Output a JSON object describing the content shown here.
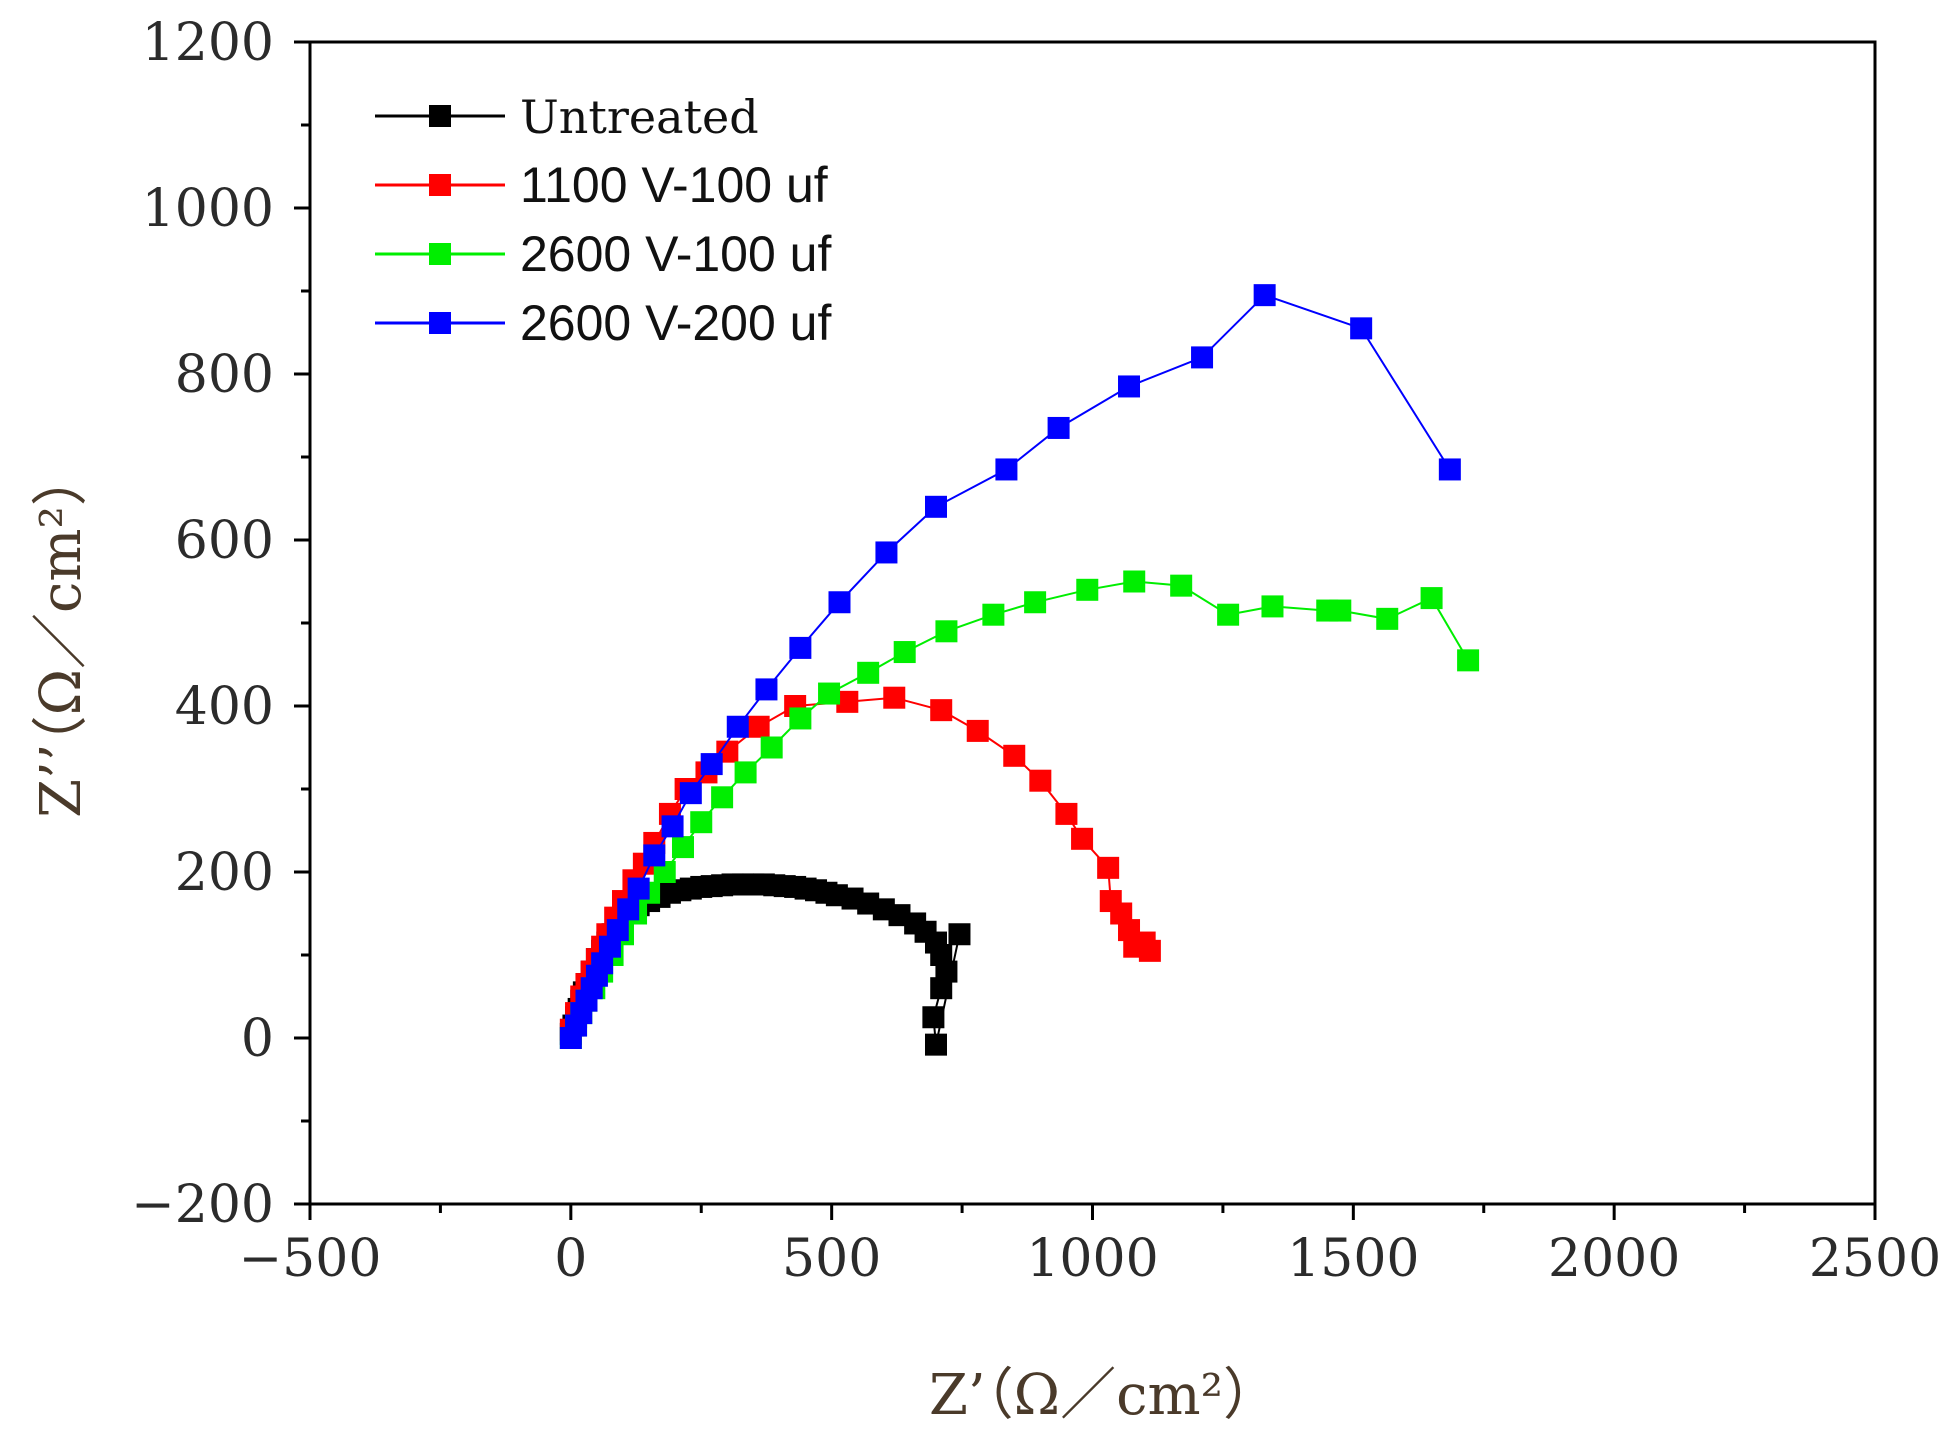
{
  "chart_data": {
    "type": "scatter",
    "title": "",
    "xlabel": "Z’（Ω／cm²）",
    "ylabel": "Z’’（Ω／cm²）",
    "xlim": [
      -500,
      2500
    ],
    "ylim": [
      -200,
      1200
    ],
    "x_ticks": [
      -500,
      0,
      500,
      1000,
      1500,
      2000,
      2500
    ],
    "y_ticks": [
      -200,
      0,
      200,
      400,
      600,
      800,
      1000,
      1200
    ],
    "x_tick_labels": [
      "−500",
      "0",
      "500",
      "1000",
      "1500",
      "2000",
      "2500"
    ],
    "y_tick_labels": [
      "−200",
      "0",
      "200",
      "400",
      "600",
      "800",
      "1000",
      "1200"
    ],
    "legend_position": "top-left",
    "series": [
      {
        "name": "Untreated",
        "color": "#000000",
        "x": [
          0,
          5,
          10,
          15,
          20,
          25,
          30,
          40,
          50,
          60,
          70,
          80,
          90,
          100,
          115,
          130,
          150,
          170,
          190,
          210,
          230,
          250,
          270,
          290,
          310,
          330,
          350,
          370,
          390,
          410,
          430,
          450,
          470,
          490,
          510,
          540,
          570,
          600,
          630,
          660,
          680,
          700,
          710,
          720,
          710,
          695,
          700,
          745
        ],
        "y": [
          5,
          15,
          25,
          35,
          45,
          55,
          65,
          80,
          95,
          105,
          115,
          125,
          135,
          142,
          152,
          160,
          165,
          170,
          175,
          178,
          180,
          182,
          183,
          184,
          185,
          185,
          185,
          185,
          184,
          183,
          182,
          180,
          178,
          175,
          172,
          168,
          162,
          155,
          148,
          138,
          128,
          115,
          100,
          80,
          60,
          25,
          -8,
          125
        ]
      },
      {
        "name": "1100 V-100 uf",
        "color": "#ff0000",
        "x": [
          0,
          10,
          20,
          30,
          40,
          50,
          60,
          70,
          85,
          100,
          120,
          140,
          160,
          190,
          220,
          260,
          300,
          360,
          430,
          530,
          620,
          710,
          780,
          850,
          900,
          950,
          980,
          1030,
          1035,
          1055,
          1070,
          1080,
          1100,
          1110
        ],
        "y": [
          10,
          30,
          50,
          65,
          80,
          95,
          110,
          125,
          145,
          165,
          190,
          210,
          235,
          270,
          300,
          320,
          345,
          375,
          400,
          405,
          410,
          395,
          370,
          340,
          310,
          270,
          240,
          205,
          165,
          150,
          130,
          110,
          115,
          105
        ]
      },
      {
        "name": "2600 V-100 uf",
        "color": "#00ee00",
        "x": [
          0,
          10,
          20,
          30,
          45,
          60,
          80,
          100,
          125,
          150,
          180,
          215,
          250,
          290,
          335,
          385,
          440,
          495,
          570,
          640,
          720,
          810,
          890,
          990,
          1080,
          1170,
          1260,
          1345,
          1450,
          1475,
          1565,
          1650,
          1720
        ],
        "y": [
          0,
          15,
          30,
          45,
          60,
          80,
          100,
          125,
          150,
          175,
          200,
          230,
          260,
          290,
          320,
          350,
          385,
          415,
          440,
          465,
          490,
          510,
          525,
          540,
          550,
          545,
          510,
          520,
          515,
          515,
          505,
          530,
          455
        ]
      },
      {
        "name": "2600 V-200 uf",
        "color": "#0000ff",
        "x": [
          0,
          10,
          20,
          30,
          40,
          50,
          60,
          75,
          90,
          110,
          130,
          160,
          195,
          230,
          270,
          320,
          375,
          440,
          515,
          605,
          700,
          835,
          935,
          1070,
          1210,
          1330,
          1515,
          1685
        ],
        "y": [
          0,
          15,
          30,
          45,
          60,
          75,
          90,
          110,
          130,
          155,
          180,
          220,
          255,
          295,
          330,
          375,
          420,
          470,
          525,
          585,
          640,
          685,
          735,
          785,
          820,
          895,
          855,
          685
        ]
      }
    ]
  }
}
